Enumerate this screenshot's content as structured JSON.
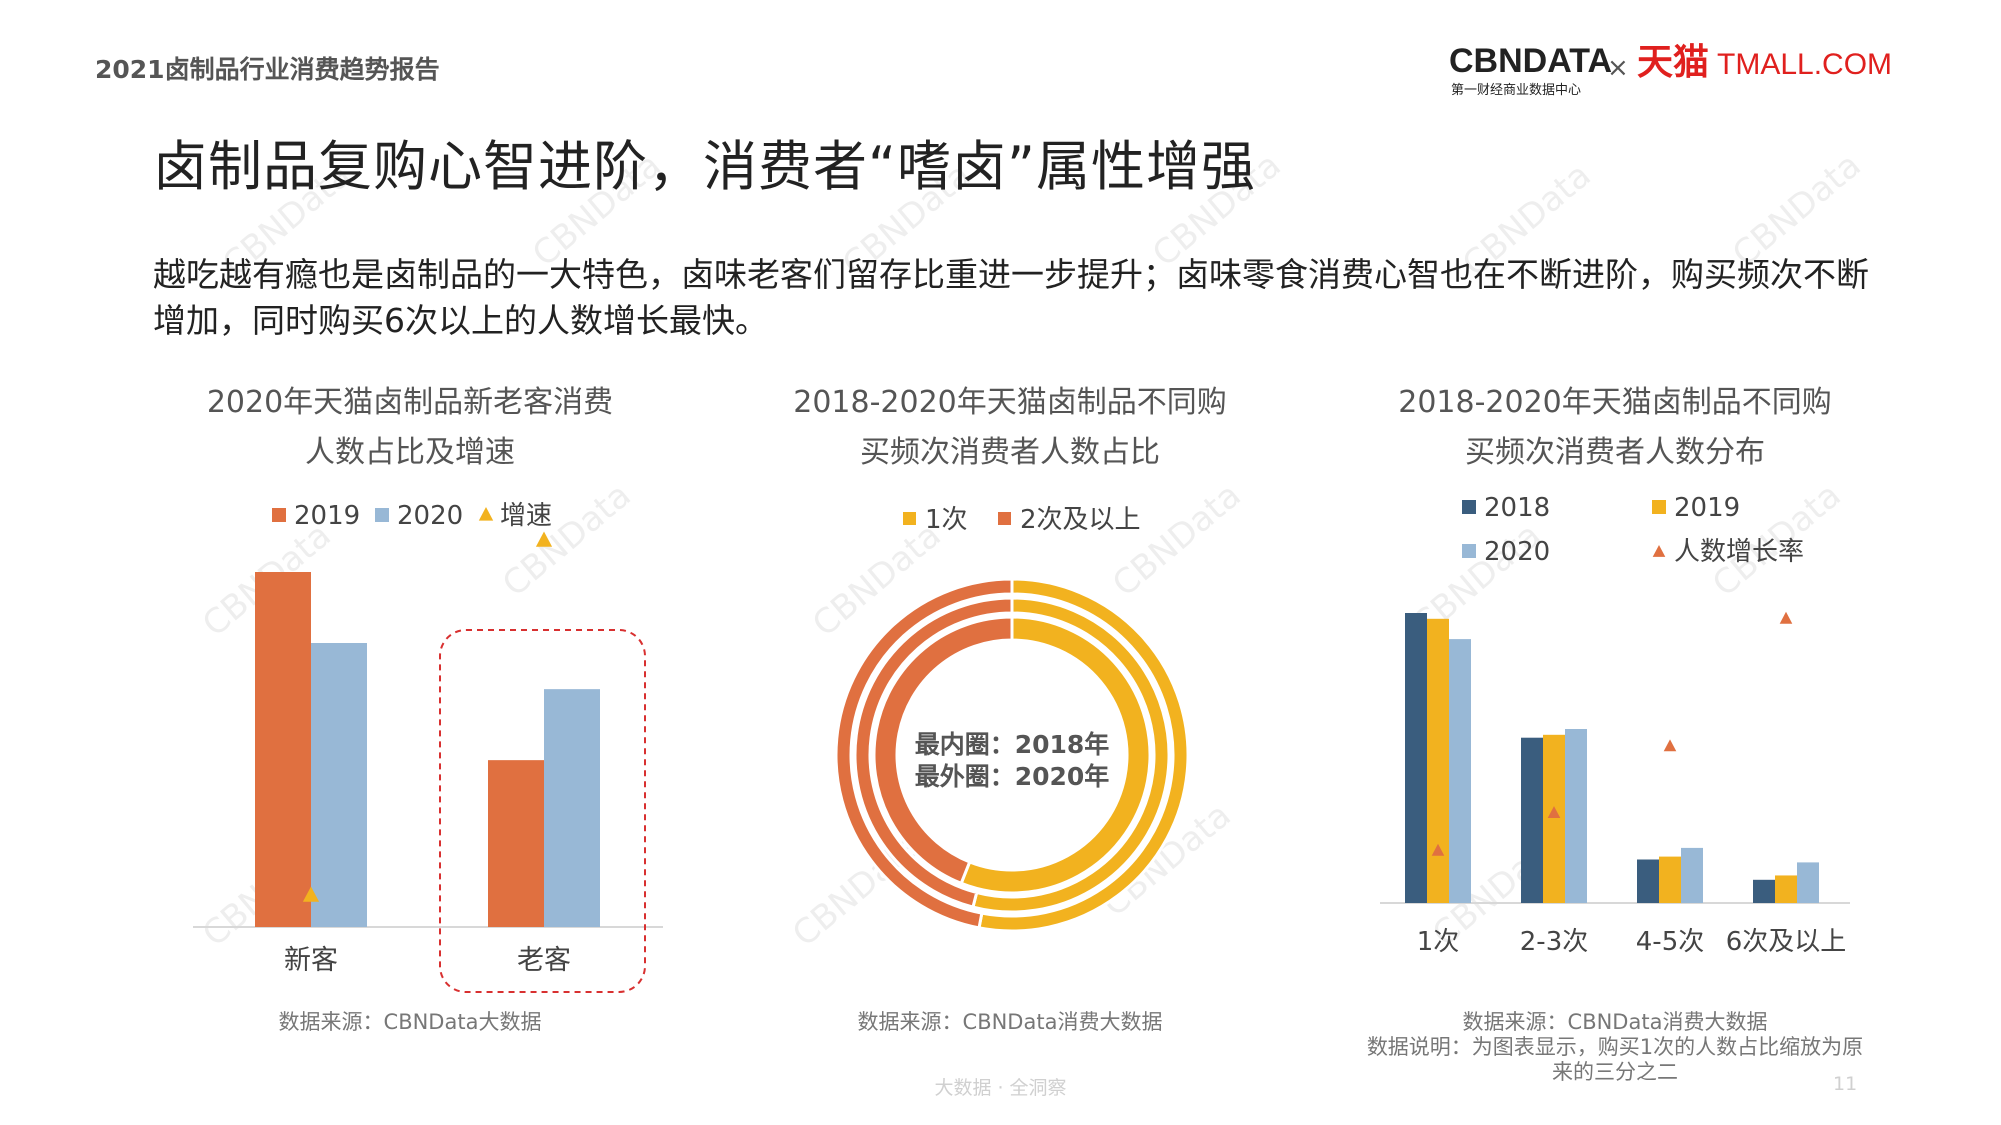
{
  "header": {
    "report_title": "2021卤制品行业消费趋势报告",
    "logo_cbn": "CBNDATA",
    "logo_cbn_sub": "第一财经商业数据中心",
    "logo_x": "×",
    "logo_tmall_cn": "天猫",
    "logo_tmall_en": "TMALL.COM"
  },
  "main_title": "卤制品复购心智进阶，消费者“嗜卤”属性增强",
  "intro_text": "越吃越有瘾也是卤制品的一大特色，卤味老客们留存比重进一步提升；卤味零食消费心智也在不断进阶，购买频次不断增加，同时购买6次以上的人数增长最快。",
  "colors": {
    "c2018": "#3a5d7e",
    "c2019_orange": "#e07040",
    "c2019_yellow": "#f2b21f",
    "c2020": "#98b8d6",
    "growth": "#f2b21f",
    "growth_red": "#e07040",
    "highlight": "#d83030"
  },
  "chart_data": [
    {
      "type": "bar",
      "title_line1": "2020年天猫卤制品新老客消费",
      "title_line2": "人数占比及增速",
      "categories": [
        "新客",
        "老客"
      ],
      "series": [
        {
          "name": "2019",
          "values": [
            100,
            47
          ]
        },
        {
          "name": "2020",
          "values": [
            80,
            67
          ]
        }
      ],
      "growth_series": {
        "name": "增速",
        "values": [
          10,
          110
        ]
      },
      "highlight_category": "老客",
      "source": "数据来源：CBNData大数据"
    },
    {
      "type": "pie",
      "title_line1": "2018-2020年天猫卤制品不同购",
      "title_line2": "买频次消费者人数占比",
      "legend": [
        "1次",
        "2次及以上"
      ],
      "rings": [
        {
          "year": "2018",
          "values": [
            56,
            44
          ]
        },
        {
          "year": "2019",
          "values": [
            54,
            46
          ]
        },
        {
          "year": "2020",
          "values": [
            53,
            47
          ]
        }
      ],
      "center_line1": "最内圈：2018年",
      "center_line2": "最外圈：2020年",
      "source": "数据来源：CBNData消费大数据"
    },
    {
      "type": "bar",
      "title_line1": "2018-2020年天猫卤制品不同购",
      "title_line2": "买频次消费者人数分布",
      "categories": [
        "1次",
        "2-3次",
        "4-5次",
        "6次及以上"
      ],
      "series": [
        {
          "name": "2018",
          "values": [
            100,
            57,
            15,
            8
          ]
        },
        {
          "name": "2019",
          "values": [
            98,
            58,
            16,
            9.5
          ]
        },
        {
          "name": "2020",
          "values": [
            91,
            60,
            19,
            14
          ]
        }
      ],
      "growth_series": {
        "name": "人数增长率",
        "values": [
          18,
          31,
          54,
          98
        ]
      },
      "source": "数据来源：CBNData消费大数据",
      "note_line1": "数据说明：为图表显示，购买1次的人数占比缩放为原",
      "note_line2": "来的三分之二"
    }
  ],
  "watermark": "CBNData",
  "footer": {
    "tagline": "大数据 · 全洞察",
    "page": "11"
  }
}
